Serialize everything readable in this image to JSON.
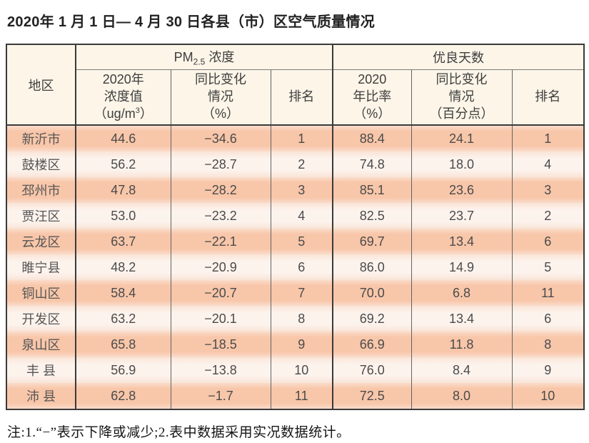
{
  "page": {
    "title": "2020年 1 月 1 日— 4 月 30 日各县（市）区空气质量情况",
    "note": "注:1.“−”表示下降或减少;2.表中数据采用实况数据统计。"
  },
  "colors": {
    "row_salmon": "#f8c6a9",
    "row_light": "#fdf3ed",
    "header_cream": "#fcf5e8",
    "border_dark": "#3a3a3a"
  },
  "table": {
    "header": {
      "region": "地区",
      "pm25_group": {
        "prefix": "PM",
        "sub": "2.5",
        "suffix": " 浓度"
      },
      "pm25_value": {
        "line1": "2020年",
        "line2": "浓度值",
        "line3_pre": "（ug/m",
        "sup": "3",
        "line3_post": "）"
      },
      "pm25_change": {
        "line1": "同比变化",
        "line2": "情况",
        "line3": "（%）"
      },
      "pm25_rank": "排名",
      "good_group": "优良天数",
      "good_rate": {
        "line1": "2020",
        "line2": "年比率",
        "line3": "（%）"
      },
      "good_change": {
        "line1": "同比变化",
        "line2": "情况",
        "line3": "（百分点）"
      },
      "good_rank": "排名"
    },
    "rows": [
      {
        "region": "新沂市",
        "pm": "44.6",
        "pmChange": "−34.6",
        "pmRank": "1",
        "rate": "88.4",
        "rateChange": "24.1",
        "rateRank": "1"
      },
      {
        "region": "鼓楼区",
        "pm": "56.2",
        "pmChange": "−28.7",
        "pmRank": "2",
        "rate": "74.8",
        "rateChange": "18.0",
        "rateRank": "4"
      },
      {
        "region": "邳州市",
        "pm": "47.8",
        "pmChange": "−28.2",
        "pmRank": "3",
        "rate": "85.1",
        "rateChange": "23.6",
        "rateRank": "3"
      },
      {
        "region": "贾汪区",
        "pm": "53.0",
        "pmChange": "−23.2",
        "pmRank": "4",
        "rate": "82.5",
        "rateChange": "23.7",
        "rateRank": "2"
      },
      {
        "region": "云龙区",
        "pm": "63.7",
        "pmChange": "−22.1",
        "pmRank": "5",
        "rate": "69.7",
        "rateChange": "13.4",
        "rateRank": "6"
      },
      {
        "region": "睢宁县",
        "pm": "48.2",
        "pmChange": "−20.9",
        "pmRank": "6",
        "rate": "86.0",
        "rateChange": "14.9",
        "rateRank": "5"
      },
      {
        "region": "铜山区",
        "pm": "58.4",
        "pmChange": "−20.7",
        "pmRank": "7",
        "rate": "70.0",
        "rateChange": "6.8",
        "rateRank": "11"
      },
      {
        "region": "开发区",
        "pm": "63.2",
        "pmChange": "−20.1",
        "pmRank": "8",
        "rate": "69.2",
        "rateChange": "13.4",
        "rateRank": "6"
      },
      {
        "region": "泉山区",
        "pm": "65.8",
        "pmChange": "−18.5",
        "pmRank": "9",
        "rate": "66.9",
        "rateChange": "11.8",
        "rateRank": "8"
      },
      {
        "region": "丰 县",
        "pm": "56.9",
        "pmChange": "−13.8",
        "pmRank": "10",
        "rate": "76.0",
        "rateChange": "8.4",
        "rateRank": "9"
      },
      {
        "region": "沛 县",
        "pm": "62.8",
        "pmChange": "−1.7",
        "pmRank": "11",
        "rate": "72.5",
        "rateChange": "8.0",
        "rateRank": "10"
      }
    ]
  }
}
